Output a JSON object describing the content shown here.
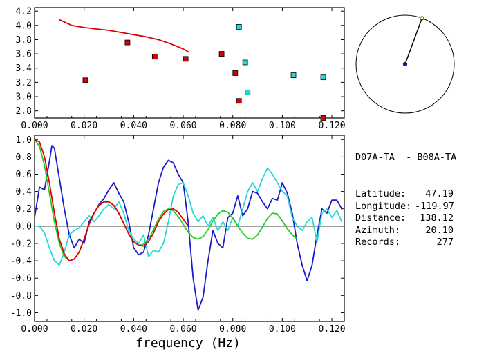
{
  "chart_data": [
    {
      "type": "scatter",
      "panel": "top",
      "xlim": [
        0.0,
        0.125
      ],
      "ylim": [
        2.7,
        4.25
      ],
      "x_ticks": [
        "0.000",
        "0.020",
        "0.040",
        "0.060",
        "0.080",
        "0.100",
        "0.120"
      ],
      "y_ticks": [
        "2.8",
        "3.0",
        "3.2",
        "3.4",
        "3.6",
        "3.8",
        "4.0",
        "4.2"
      ],
      "series": [
        {
          "color": "#dd0000",
          "points": [
            [
              0.0205,
              3.23
            ],
            [
              0.0375,
              3.76
            ],
            [
              0.0485,
              3.56
            ],
            [
              0.061,
              3.53
            ],
            [
              0.0755,
              3.6
            ],
            [
              0.081,
              3.33
            ],
            [
              0.0825,
              2.94
            ],
            [
              0.1165,
              2.7
            ]
          ]
        },
        {
          "color": "#22d8d8",
          "points": [
            [
              0.0825,
              3.98
            ],
            [
              0.085,
              3.48
            ],
            [
              0.086,
              3.06
            ],
            [
              0.1045,
              3.3
            ],
            [
              0.1165,
              3.27
            ]
          ]
        },
        {
          "type": "line",
          "color": "#dd0000",
          "points": [
            [
              0.01,
              4.08
            ],
            [
              0.015,
              4.0
            ],
            [
              0.02,
              3.97
            ],
            [
              0.025,
              3.95
            ],
            [
              0.03,
              3.93
            ],
            [
              0.035,
              3.9
            ],
            [
              0.04,
              3.87
            ],
            [
              0.045,
              3.84
            ],
            [
              0.05,
              3.8
            ],
            [
              0.055,
              3.74
            ],
            [
              0.06,
              3.67
            ],
            [
              0.0625,
              3.62
            ]
          ]
        }
      ]
    },
    {
      "type": "line",
      "panel": "bottom",
      "xlabel": "frequency (Hz)",
      "xlim": [
        0.0,
        0.125
      ],
      "ylim": [
        -1.1,
        1.05
      ],
      "x_ticks": [
        "0.000",
        "0.020",
        "0.040",
        "0.060",
        "0.080",
        "0.100",
        "0.120"
      ],
      "y_ticks": [
        "1.0",
        "0.8",
        "0.6",
        "0.4",
        "0.2",
        "0.0",
        "-0.2",
        "-0.4",
        "-0.6",
        "-0.8",
        "-1.0"
      ],
      "series": [
        {
          "color": "#1a1acc",
          "points": [
            [
              0.0,
              0.1
            ],
            [
              0.002,
              0.45
            ],
            [
              0.004,
              0.42
            ],
            [
              0.006,
              0.75
            ],
            [
              0.007,
              0.93
            ],
            [
              0.008,
              0.9
            ],
            [
              0.01,
              0.55
            ],
            [
              0.012,
              0.2
            ],
            [
              0.014,
              -0.1
            ],
            [
              0.016,
              -0.25
            ],
            [
              0.018,
              -0.15
            ],
            [
              0.02,
              -0.2
            ],
            [
              0.022,
              0.05
            ],
            [
              0.024,
              0.15
            ],
            [
              0.026,
              0.25
            ],
            [
              0.028,
              0.32
            ],
            [
              0.03,
              0.42
            ],
            [
              0.032,
              0.5
            ],
            [
              0.034,
              0.38
            ],
            [
              0.036,
              0.28
            ],
            [
              0.038,
              0.05
            ],
            [
              0.04,
              -0.25
            ],
            [
              0.042,
              -0.33
            ],
            [
              0.044,
              -0.3
            ],
            [
              0.046,
              -0.1
            ],
            [
              0.048,
              0.2
            ],
            [
              0.05,
              0.5
            ],
            [
              0.052,
              0.68
            ],
            [
              0.054,
              0.76
            ],
            [
              0.056,
              0.73
            ],
            [
              0.058,
              0.6
            ],
            [
              0.06,
              0.5
            ],
            [
              0.062,
              0.05
            ],
            [
              0.064,
              -0.6
            ],
            [
              0.066,
              -0.97
            ],
            [
              0.068,
              -0.82
            ],
            [
              0.07,
              -0.4
            ],
            [
              0.072,
              -0.05
            ],
            [
              0.074,
              -0.2
            ],
            [
              0.076,
              -0.25
            ],
            [
              0.078,
              0.1
            ],
            [
              0.08,
              0.15
            ],
            [
              0.082,
              0.35
            ],
            [
              0.084,
              0.12
            ],
            [
              0.086,
              0.2
            ],
            [
              0.088,
              0.4
            ],
            [
              0.09,
              0.38
            ],
            [
              0.092,
              0.28
            ],
            [
              0.094,
              0.2
            ],
            [
              0.096,
              0.32
            ],
            [
              0.098,
              0.3
            ],
            [
              0.1,
              0.5
            ],
            [
              0.102,
              0.38
            ],
            [
              0.104,
              0.15
            ],
            [
              0.106,
              -0.2
            ],
            [
              0.108,
              -0.45
            ],
            [
              0.11,
              -0.63
            ],
            [
              0.112,
              -0.45
            ],
            [
              0.114,
              -0.1
            ],
            [
              0.116,
              0.2
            ],
            [
              0.118,
              0.15
            ],
            [
              0.12,
              0.3
            ],
            [
              0.122,
              0.3
            ],
            [
              0.124,
              0.2
            ]
          ]
        },
        {
          "color": "#22d8d8",
          "points": [
            [
              0.0,
              0.0
            ],
            [
              0.002,
              0.0
            ],
            [
              0.004,
              -0.08
            ],
            [
              0.006,
              -0.25
            ],
            [
              0.008,
              -0.4
            ],
            [
              0.01,
              -0.45
            ],
            [
              0.012,
              -0.3
            ],
            [
              0.014,
              -0.1
            ],
            [
              0.016,
              -0.05
            ],
            [
              0.018,
              -0.02
            ],
            [
              0.02,
              0.05
            ],
            [
              0.022,
              0.12
            ],
            [
              0.024,
              0.05
            ],
            [
              0.026,
              0.12
            ],
            [
              0.028,
              0.2
            ],
            [
              0.03,
              0.25
            ],
            [
              0.032,
              0.2
            ],
            [
              0.034,
              0.28
            ],
            [
              0.036,
              0.15
            ],
            [
              0.038,
              -0.05
            ],
            [
              0.04,
              -0.15
            ],
            [
              0.042,
              -0.2
            ],
            [
              0.044,
              -0.1
            ],
            [
              0.046,
              -0.35
            ],
            [
              0.048,
              -0.28
            ],
            [
              0.05,
              -0.3
            ],
            [
              0.052,
              -0.2
            ],
            [
              0.054,
              0.05
            ],
            [
              0.056,
              0.35
            ],
            [
              0.058,
              0.48
            ],
            [
              0.06,
              0.5
            ],
            [
              0.062,
              0.35
            ],
            [
              0.064,
              0.15
            ],
            [
              0.066,
              0.05
            ],
            [
              0.068,
              0.12
            ],
            [
              0.07,
              0.0
            ],
            [
              0.072,
              0.1
            ],
            [
              0.074,
              -0.05
            ],
            [
              0.076,
              0.05
            ],
            [
              0.078,
              -0.05
            ],
            [
              0.08,
              0.1
            ],
            [
              0.082,
              0.0
            ],
            [
              0.084,
              0.2
            ],
            [
              0.086,
              0.4
            ],
            [
              0.088,
              0.5
            ],
            [
              0.09,
              0.4
            ],
            [
              0.092,
              0.55
            ],
            [
              0.094,
              0.67
            ],
            [
              0.096,
              0.6
            ],
            [
              0.098,
              0.5
            ],
            [
              0.1,
              0.4
            ],
            [
              0.102,
              0.35
            ],
            [
              0.104,
              0.1
            ],
            [
              0.106,
              0.0
            ],
            [
              0.108,
              -0.05
            ],
            [
              0.11,
              0.05
            ],
            [
              0.112,
              0.1
            ],
            [
              0.114,
              -0.18
            ],
            [
              0.116,
              0.15
            ],
            [
              0.118,
              0.2
            ],
            [
              0.12,
              0.1
            ],
            [
              0.122,
              0.18
            ],
            [
              0.124,
              0.05
            ]
          ]
        },
        {
          "color": "#22cc22",
          "points": [
            [
              0.0,
              1.0
            ],
            [
              0.002,
              0.92
            ],
            [
              0.004,
              0.7
            ],
            [
              0.006,
              0.38
            ],
            [
              0.008,
              0.05
            ],
            [
              0.01,
              -0.2
            ],
            [
              0.012,
              -0.35
            ],
            [
              0.014,
              -0.4
            ],
            [
              0.016,
              -0.38
            ],
            [
              0.018,
              -0.3
            ],
            [
              0.02,
              -0.15
            ],
            [
              0.022,
              0.02
            ],
            [
              0.024,
              0.15
            ],
            [
              0.026,
              0.24
            ],
            [
              0.028,
              0.28
            ],
            [
              0.03,
              0.28
            ],
            [
              0.032,
              0.24
            ],
            [
              0.034,
              0.15
            ],
            [
              0.036,
              0.03
            ],
            [
              0.038,
              -0.09
            ],
            [
              0.04,
              -0.18
            ],
            [
              0.042,
              -0.22
            ],
            [
              0.044,
              -0.21
            ],
            [
              0.046,
              -0.15
            ],
            [
              0.048,
              -0.04
            ],
            [
              0.05,
              0.08
            ],
            [
              0.052,
              0.17
            ],
            [
              0.054,
              0.2
            ],
            [
              0.056,
              0.18
            ],
            [
              0.058,
              0.11
            ],
            [
              0.06,
              0.02
            ],
            [
              0.062,
              -0.07
            ],
            [
              0.064,
              -0.13
            ],
            [
              0.066,
              -0.15
            ],
            [
              0.068,
              -0.12
            ],
            [
              0.07,
              -0.04
            ],
            [
              0.072,
              0.06
            ],
            [
              0.074,
              0.14
            ],
            [
              0.076,
              0.18
            ],
            [
              0.078,
              0.16
            ],
            [
              0.08,
              0.09
            ],
            [
              0.082,
              0.0
            ],
            [
              0.084,
              -0.08
            ],
            [
              0.086,
              -0.14
            ],
            [
              0.088,
              -0.15
            ],
            [
              0.09,
              -0.1
            ],
            [
              0.092,
              -0.01
            ],
            [
              0.094,
              0.09
            ],
            [
              0.096,
              0.15
            ],
            [
              0.098,
              0.14
            ],
            [
              0.1,
              0.06
            ],
            [
              0.102,
              -0.03
            ],
            [
              0.104,
              -0.1
            ],
            [
              0.106,
              -0.15
            ]
          ]
        },
        {
          "color": "#dd0000",
          "points": [
            [
              0.0,
              1.0
            ],
            [
              0.002,
              0.97
            ],
            [
              0.004,
              0.8
            ],
            [
              0.006,
              0.5
            ],
            [
              0.008,
              0.15
            ],
            [
              0.01,
              -0.15
            ],
            [
              0.012,
              -0.32
            ],
            [
              0.014,
              -0.4
            ],
            [
              0.016,
              -0.38
            ],
            [
              0.018,
              -0.3
            ],
            [
              0.02,
              -0.15
            ],
            [
              0.022,
              0.02
            ],
            [
              0.024,
              0.15
            ],
            [
              0.026,
              0.24
            ],
            [
              0.028,
              0.28
            ],
            [
              0.03,
              0.28
            ],
            [
              0.032,
              0.24
            ],
            [
              0.034,
              0.15
            ],
            [
              0.036,
              0.03
            ],
            [
              0.038,
              -0.09
            ],
            [
              0.04,
              -0.18
            ],
            [
              0.042,
              -0.22
            ],
            [
              0.044,
              -0.23
            ],
            [
              0.046,
              -0.18
            ],
            [
              0.048,
              -0.08
            ],
            [
              0.05,
              0.05
            ],
            [
              0.052,
              0.14
            ],
            [
              0.054,
              0.19
            ],
            [
              0.056,
              0.2
            ],
            [
              0.058,
              0.16
            ],
            [
              0.06,
              0.08
            ],
            [
              0.062,
              0.0
            ]
          ]
        }
      ]
    }
  ],
  "azimuth_dial": {
    "azimuth_deg": 20.1,
    "line_color": "#000000",
    "center_color": "#1a1acc",
    "marker_color": "#ffff66"
  },
  "info": {
    "station_pair": "D07A-TA  - B08A-TA",
    "rows": [
      {
        "label": "Latitude:",
        "value": "47.19"
      },
      {
        "label": "Longitude:",
        "value": "-119.97"
      },
      {
        "label": "Distance:",
        "value": "138.12"
      },
      {
        "label": "Azimuth:",
        "value": "20.10"
      },
      {
        "label": "Records:",
        "value": "277"
      }
    ]
  }
}
